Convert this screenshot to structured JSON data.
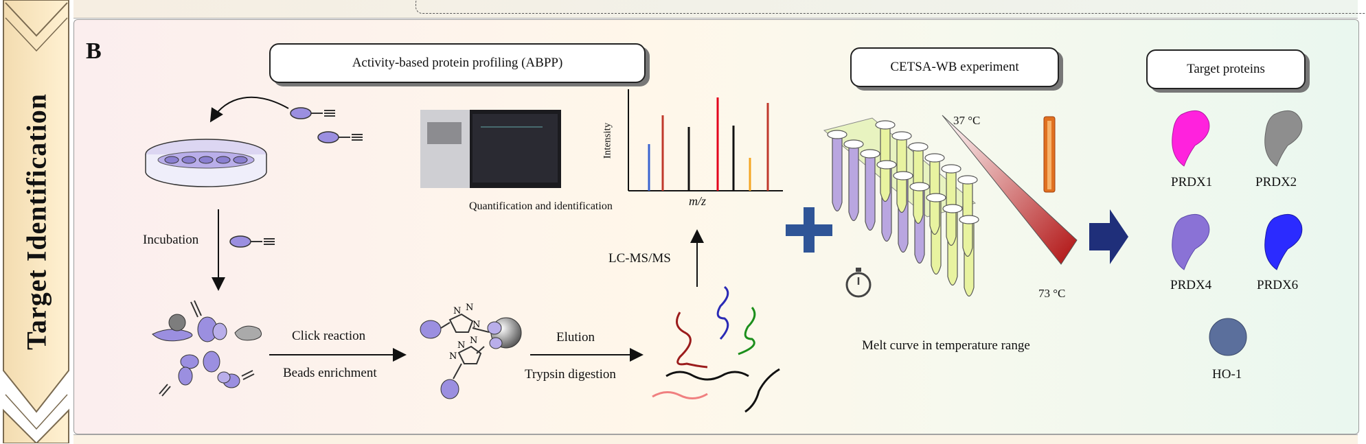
{
  "side_title": "Target Identification",
  "panel_label": "B",
  "abpp": {
    "title": "Activity-based protein profiling (ABPP)",
    "incubation": "Incubation",
    "click_reaction": "Click reaction",
    "beads_enrichment": "Beads  enrichment",
    "elution": "Elution",
    "trypsin": "Trypsin digestion",
    "lcms": "LC-MS/MS",
    "quant": "Quantification and identification",
    "intensity": "Intensity",
    "mz": "m/z"
  },
  "cetsa": {
    "title": "CETSA-WB experiment",
    "temp_low": "37 °C",
    "temp_high": "73 °C",
    "melt": "Melt curve in temperature range"
  },
  "targets": {
    "title": "Target proteins",
    "items": [
      {
        "label": "PRDX1",
        "color": "#ff22dd"
      },
      {
        "label": "PRDX2",
        "color": "#8e8e8e"
      },
      {
        "label": "PRDX4",
        "color": "#8a72d6"
      },
      {
        "label": "PRDX6",
        "color": "#2b2bff"
      },
      {
        "label": "HO-1",
        "color": "#5b6f9c"
      }
    ]
  },
  "colors": {
    "plus": "#2f5597",
    "arrow": "#1f2f7a",
    "probe": "#9b8fe0"
  }
}
